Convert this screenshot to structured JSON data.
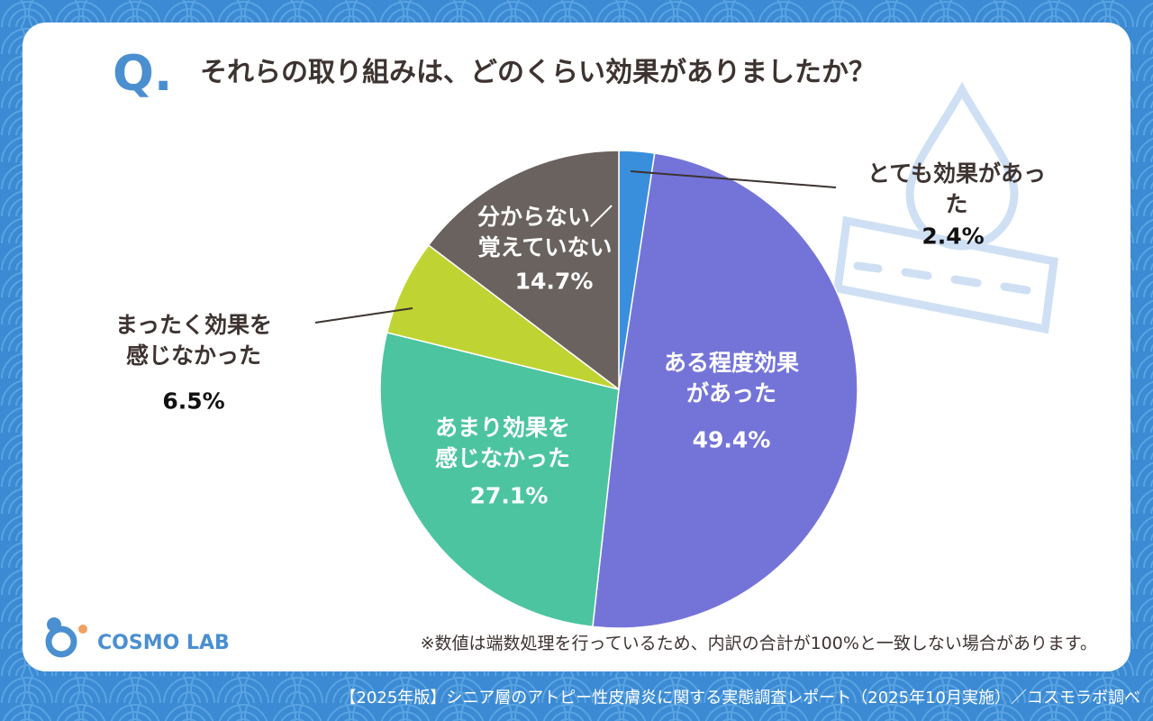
{
  "question_mark": "Q.",
  "brand": "COSMO LAB",
  "chart_data": {
    "type": "pie",
    "title": "それらの取り組みは、どのくらい効果がありましたか？",
    "categories": [
      "とても効果があった",
      "ある程度効果\nがあった",
      "あまり効果を\n感じなかった",
      "まったく効果を\n感じなかった",
      "分からない／\n覚えていない"
    ],
    "values": [
      2.4,
      49.4,
      27.1,
      6.5,
      14.7
    ],
    "value_labels": [
      "2.4%",
      "49.4%",
      "27.1%",
      "6.5%",
      "14.7%"
    ],
    "colors": [
      "#3a8fdc",
      "#7474d8",
      "#4cc4a0",
      "#bfd433",
      "#69625f"
    ],
    "note": "※数値は端数処理を行っているため、内訳の合計が100%と一致しない場合があります。",
    "source": "【2025年版】シニア層のアトピー性皮膚炎に関する実態調査レポート（2025年10月実施）／コスモラボ調べ"
  }
}
